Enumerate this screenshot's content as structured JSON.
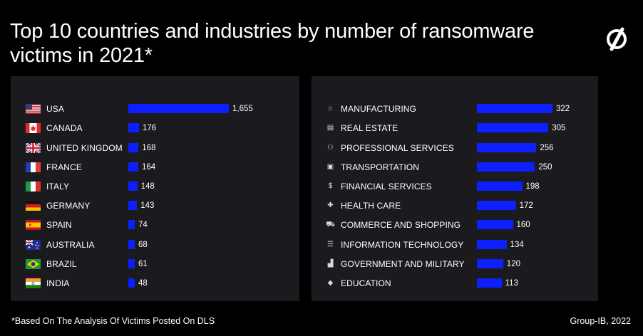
{
  "title": "Top 10 countries and industries by number of ransomware victims in 2021*",
  "footnote": "*Based On The Analysis Of Victims Posted On DLS",
  "credit": "Group-IB, 2022",
  "colors": {
    "bar": "#0d1fff",
    "background": "#000000",
    "panel": "#1b1b1f",
    "text": "#ffffff"
  },
  "chart_data": [
    {
      "type": "bar",
      "orientation": "horizontal",
      "categories": [
        "USA",
        "CANADA",
        "UNITED KINGDOM",
        "FRANCE",
        "ITALY",
        "GERMANY",
        "SPAIN",
        "AUSTRALIA",
        "BRAZIL",
        "INDIA"
      ],
      "values": [
        1655,
        176,
        168,
        164,
        148,
        143,
        74,
        68,
        61,
        48
      ],
      "value_labels": [
        "1,655",
        "176",
        "168",
        "164",
        "148",
        "143",
        "74",
        "68",
        "61",
        "48"
      ],
      "flags": [
        "us",
        "ca",
        "gb",
        "fr",
        "it",
        "de",
        "es",
        "au",
        "br",
        "in"
      ],
      "grid": false
    },
    {
      "type": "bar",
      "orientation": "horizontal",
      "categories": [
        "MANUFACTURING",
        "REAL ESTATE",
        "PROFESSIONAL SERVICES",
        "TRANSPORTATION",
        "FINANCIAL SERVICES",
        "HEALTH CARE",
        "COMMERCE AND SHOPPING",
        "INFORMATION TECHNOLOGY",
        "GOVERNMENT AND MILITARY",
        "EDUCATION"
      ],
      "values": [
        322,
        305,
        256,
        250,
        198,
        172,
        160,
        134,
        120,
        113
      ],
      "value_labels": [
        "322",
        "305",
        "256",
        "250",
        "198",
        "172",
        "160",
        "134",
        "120",
        "113"
      ],
      "icons": [
        "factory-icon",
        "building-icon",
        "people-icon",
        "truck-icon",
        "dollar-icon",
        "medical-icon",
        "cart-icon",
        "server-icon",
        "government-icon",
        "graduation-cap-icon"
      ],
      "grid": false
    }
  ]
}
